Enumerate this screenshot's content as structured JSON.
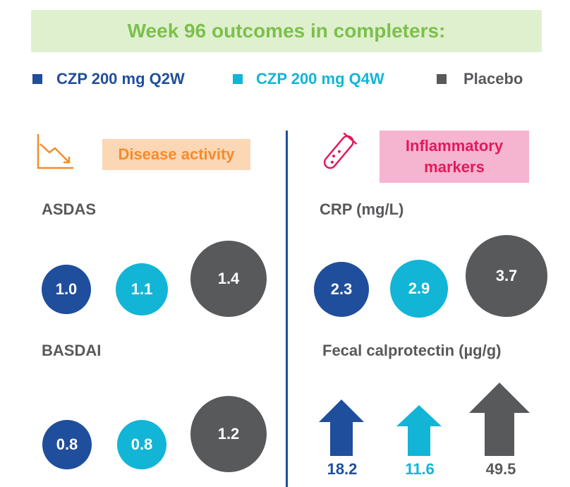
{
  "banner": {
    "title": "Week 96 outcomes in completers:"
  },
  "legend": [
    {
      "label": "CZP 200 mg Q2W",
      "color": "#1f4e9c"
    },
    {
      "label": "CZP 200 mg Q4W",
      "color": "#12b5d6"
    },
    {
      "label": "Placebo",
      "color": "#58595b"
    }
  ],
  "sections": {
    "disease": {
      "title": "Disease activity",
      "icon": "trend-down-chart-icon",
      "color": "#f58b2c"
    },
    "inflam": {
      "title": "Inflammatory markers",
      "icon": "test-tube-icon",
      "color": "#e3195b"
    }
  },
  "chart_data": [
    {
      "type": "bubble",
      "title": "ASDAS",
      "categories": [
        "CZP 200 mg Q2W",
        "CZP 200 mg Q4W",
        "Placebo"
      ],
      "values": [
        1.0,
        1.1,
        1.4
      ],
      "labels": [
        "1.0",
        "1.1",
        "1.4"
      ]
    },
    {
      "type": "bubble",
      "title": "BASDAI",
      "categories": [
        "CZP 200 mg Q2W",
        "CZP 200 mg Q4W",
        "Placebo"
      ],
      "values": [
        0.8,
        0.8,
        1.2
      ],
      "labels": [
        "0.8",
        "0.8",
        "1.2"
      ]
    },
    {
      "type": "bubble",
      "title": "CRP (mg/L)",
      "categories": [
        "CZP 200 mg Q2W",
        "CZP 200 mg Q4W",
        "Placebo"
      ],
      "values": [
        2.3,
        2.9,
        3.7
      ],
      "labels": [
        "2.3",
        "2.9",
        "3.7"
      ]
    },
    {
      "type": "arrow",
      "title": "Fecal calprotectin (µg/g)",
      "categories": [
        "CZP 200 mg Q2W",
        "CZP 200 mg Q4W",
        "Placebo"
      ],
      "values": [
        18.2,
        11.6,
        49.5
      ],
      "labels": [
        "18.2",
        "11.6",
        "49.5"
      ]
    }
  ]
}
